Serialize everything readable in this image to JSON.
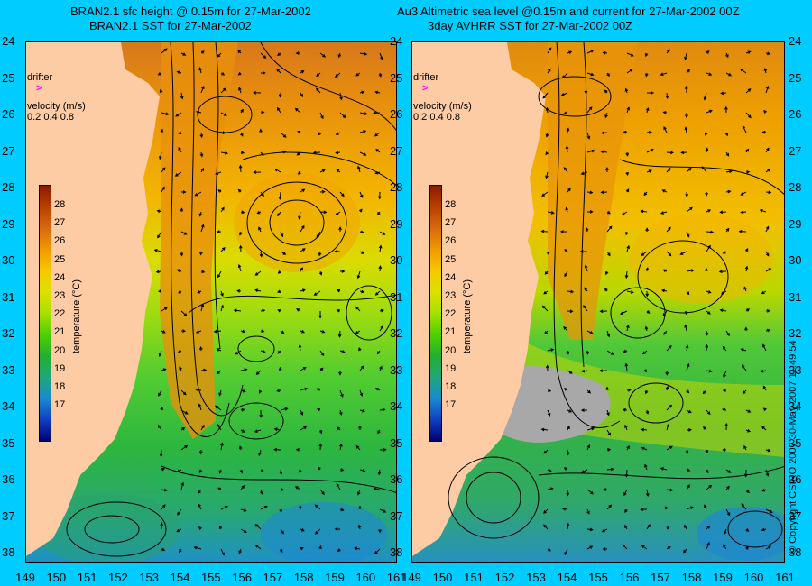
{
  "titles": {
    "left_line1": "BRAN2.1 sfc height @ 0.15m for 27-Mar-2002",
    "left_line2": "BRAN2.1 SST for 27-Mar-2002",
    "right_line1": "Au3 Altimetric sea level  @0.15m and current for 27-Mar-2002 00Z",
    "right_line2": "3day AVHRR SST for 27-Mar-2002 00Z"
  },
  "lat_labels": [
    "24",
    "25",
    "26",
    "27",
    "28",
    "29",
    "30",
    "31",
    "32",
    "33",
    "34",
    "35",
    "36",
    "37",
    "38"
  ],
  "lon_labels": [
    "149",
    "150",
    "151",
    "152",
    "153",
    "154",
    "155",
    "156",
    "157",
    "158",
    "159",
    "160",
    "161"
  ],
  "legend": {
    "drifter_label": "drifter",
    "drifter_symbol": ">",
    "velocity_label": "velocity (m/s)",
    "velocity_values": [
      "0.2",
      "0.4",
      "0.8"
    ]
  },
  "colorbar": {
    "ticks": [
      "28",
      "27",
      "26",
      "25",
      "24",
      "23",
      "22",
      "21",
      "20",
      "19",
      "18",
      "17"
    ],
    "title": "temperature (°C)",
    "colors": [
      "#8b1a00",
      "#b84000",
      "#d86a10",
      "#f09a00",
      "#f5c800",
      "#dde000",
      "#a8e000",
      "#4ed000",
      "#22b030",
      "#20a878",
      "#1a8ad0",
      "#1040c0",
      "#000070"
    ]
  },
  "copyright": "© Copyright CSIRO 2007   30-May-2007 11:49:54",
  "colors": {
    "background": "#00ccff",
    "land": "#fdcba4",
    "cloud": "#a8a8a8"
  }
}
